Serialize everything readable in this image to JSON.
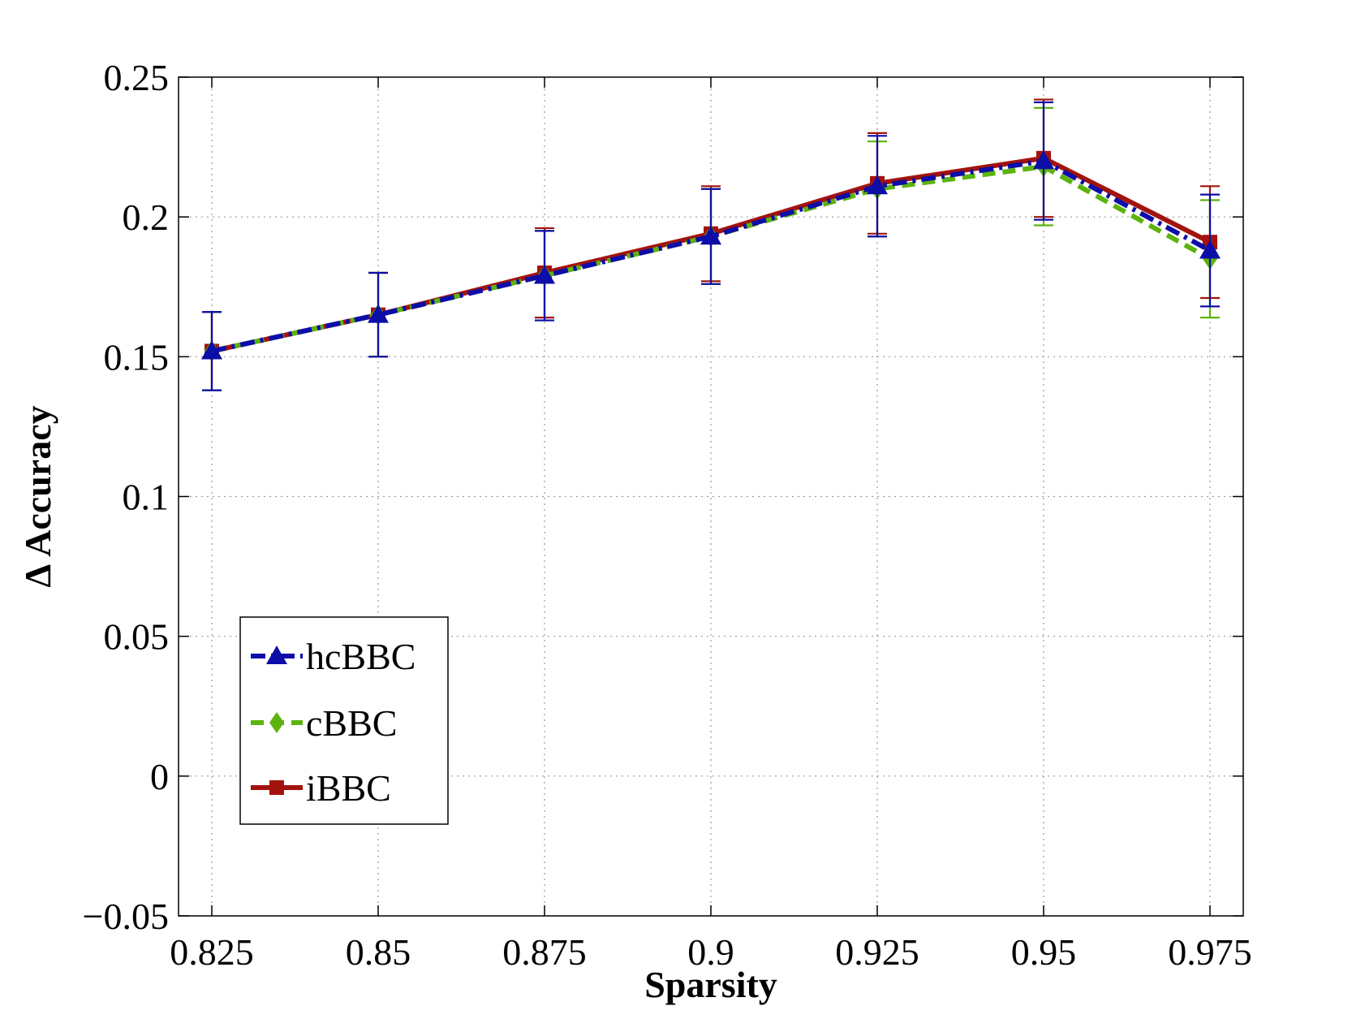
{
  "chart_data": {
    "type": "line",
    "title": "",
    "xlabel": "Sparsity",
    "ylabel": "Δ Accuracy",
    "x": [
      0.825,
      0.85,
      0.875,
      0.9,
      0.925,
      0.95,
      0.975
    ],
    "x_tick_labels": [
      "0.825",
      "0.85",
      "0.875",
      "0.9",
      "0.925",
      "0.95",
      "0.975"
    ],
    "y_ticks": [
      -0.05,
      0,
      0.05,
      0.1,
      0.15,
      0.2,
      0.25
    ],
    "y_tick_labels": [
      "−0.05",
      "0",
      "0.05",
      "0.1",
      "0.15",
      "0.2",
      "0.25"
    ],
    "xlim": [
      0.82,
      0.98
    ],
    "ylim": [
      -0.05,
      0.25
    ],
    "grid": true,
    "legend_position": "bottom-left",
    "series": [
      {
        "name": "iBBC",
        "color": "#a3130d",
        "line_style": "solid",
        "marker": "square",
        "values": [
          0.152,
          0.165,
          0.18,
          0.194,
          0.212,
          0.221,
          0.191
        ],
        "error": [
          0.014,
          0.015,
          0.016,
          0.017,
          0.018,
          0.021,
          0.02
        ]
      },
      {
        "name": "cBBC",
        "color": "#5cb30e",
        "line_style": "dashed",
        "marker": "diamond",
        "values": [
          0.152,
          0.165,
          0.179,
          0.193,
          0.21,
          0.218,
          0.185
        ],
        "error": [
          0.014,
          0.015,
          0.016,
          0.017,
          0.017,
          0.021,
          0.021
        ]
      },
      {
        "name": "hcBBC",
        "color": "#0d0da8",
        "line_style": "dashdot",
        "marker": "triangle",
        "values": [
          0.152,
          0.165,
          0.179,
          0.193,
          0.211,
          0.22,
          0.188
        ],
        "error": [
          0.014,
          0.015,
          0.016,
          0.017,
          0.018,
          0.021,
          0.02
        ]
      }
    ],
    "legend_order": [
      "hcBBC",
      "cBBC",
      "iBBC"
    ]
  }
}
